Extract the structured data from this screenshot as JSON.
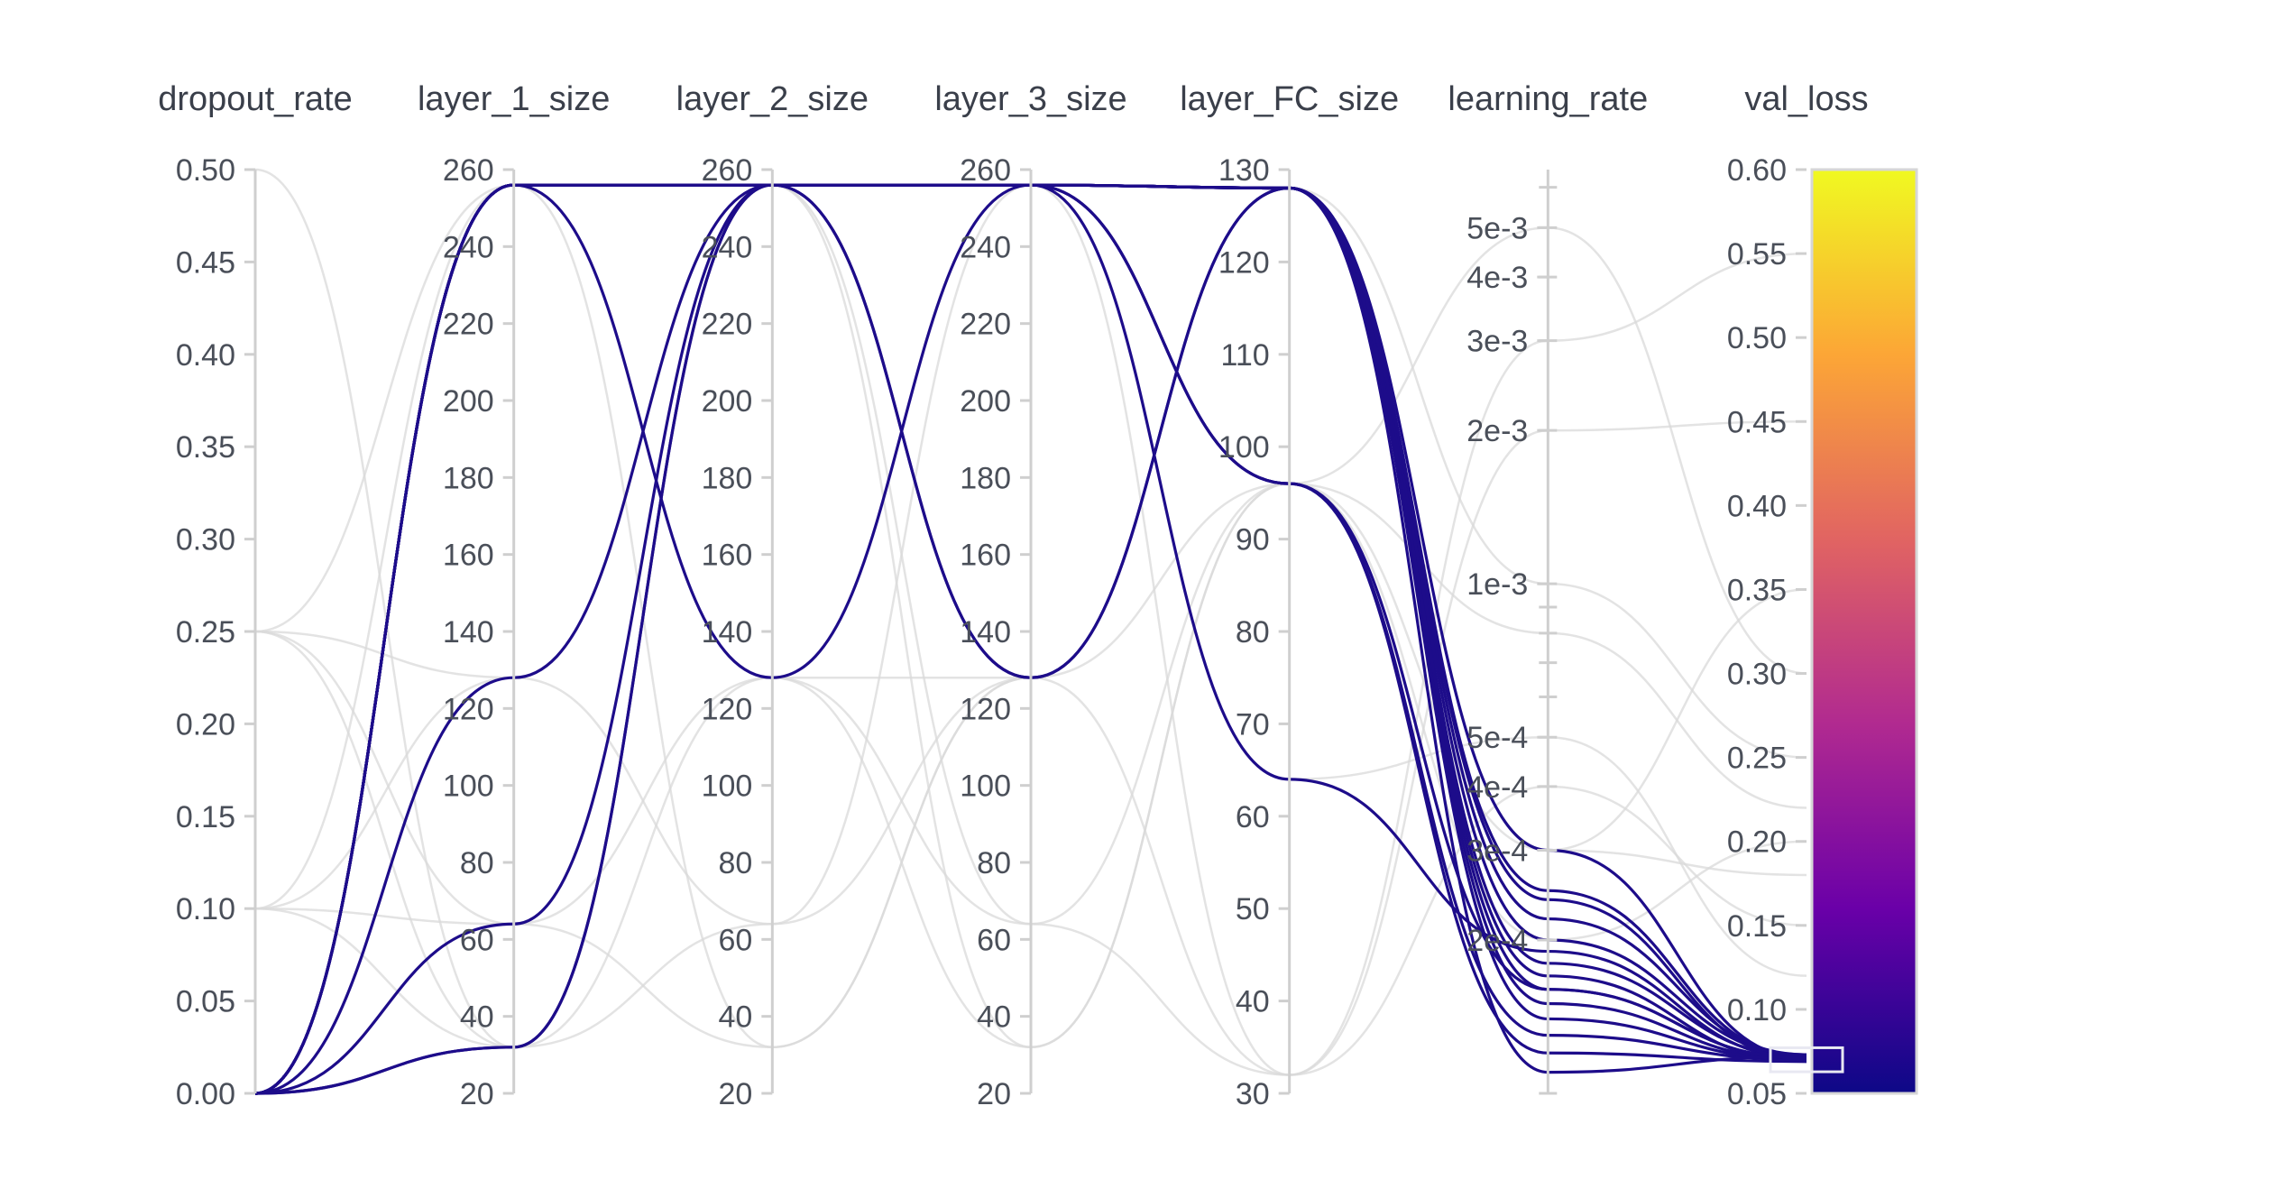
{
  "chart_data": {
    "type": "parallel_coordinates",
    "dimensions": [
      {
        "key": "dropout_rate",
        "label": "dropout_rate",
        "range": [
          0,
          0.5
        ],
        "scale": "linear",
        "ticks": [
          "0.00",
          "0.05",
          "0.10",
          "0.15",
          "0.20",
          "0.25",
          "0.30",
          "0.35",
          "0.40",
          "0.45",
          "0.50"
        ]
      },
      {
        "key": "layer_1_size",
        "label": "layer_1_size",
        "range": [
          20,
          260
        ],
        "scale": "linear",
        "ticks": [
          "20",
          "40",
          "60",
          "80",
          "100",
          "120",
          "140",
          "160",
          "180",
          "200",
          "220",
          "240",
          "260"
        ]
      },
      {
        "key": "layer_2_size",
        "label": "layer_2_size",
        "range": [
          20,
          260
        ],
        "scale": "linear",
        "ticks": [
          "20",
          "40",
          "60",
          "80",
          "100",
          "120",
          "140",
          "160",
          "180",
          "200",
          "220",
          "240",
          "260"
        ]
      },
      {
        "key": "layer_3_size",
        "label": "layer_3_size",
        "range": [
          20,
          260
        ],
        "scale": "linear",
        "ticks": [
          "20",
          "40",
          "60",
          "80",
          "100",
          "120",
          "140",
          "160",
          "180",
          "200",
          "220",
          "240",
          "260"
        ]
      },
      {
        "key": "layer_FC_size",
        "label": "layer_FC_size",
        "range": [
          30,
          130
        ],
        "scale": "linear",
        "ticks": [
          "30",
          "40",
          "50",
          "60",
          "70",
          "80",
          "90",
          "100",
          "110",
          "120",
          "130"
        ]
      },
      {
        "key": "learning_rate",
        "label": "learning_rate",
        "range": [
          0.0001,
          0.0065
        ],
        "scale": "log",
        "ticks": [
          "2e-4",
          "3e-4",
          "4e-4",
          "5e-4",
          "1e-3",
          "2e-3",
          "3e-3",
          "4e-3",
          "5e-3"
        ]
      },
      {
        "key": "val_loss",
        "label": "val_loss",
        "range": [
          0.05,
          0.6
        ],
        "scale": "linear",
        "ticks": [
          "0.05",
          "0.10",
          "0.15",
          "0.20",
          "0.25",
          "0.30",
          "0.35",
          "0.40",
          "0.45",
          "0.50",
          "0.55",
          "0.60"
        ]
      }
    ],
    "colorscale": {
      "name": "plasma",
      "stops": [
        "#0d0887",
        "#6a00a8",
        "#b12a90",
        "#e16462",
        "#fca636",
        "#f0f921"
      ],
      "range": [
        0.05,
        0.6
      ]
    },
    "highlight_range": {
      "dimension": "val_loss",
      "range": [
        0.065,
        0.075
      ]
    },
    "runs": [
      {
        "dropout_rate": 0.0,
        "layer_1_size": 256,
        "layer_2_size": 256,
        "layer_3_size": 256,
        "layer_FC_size": 128,
        "learning_rate": 0.00016,
        "val_loss": 0.071
      },
      {
        "dropout_rate": 0.0,
        "layer_1_size": 256,
        "layer_2_size": 128,
        "layer_3_size": 256,
        "layer_FC_size": 128,
        "learning_rate": 0.00015,
        "val_loss": 0.07
      },
      {
        "dropout_rate": 0.0,
        "layer_1_size": 256,
        "layer_2_size": 256,
        "layer_3_size": 128,
        "layer_FC_size": 128,
        "learning_rate": 0.00018,
        "val_loss": 0.072
      },
      {
        "dropout_rate": 0.0,
        "layer_1_size": 128,
        "layer_2_size": 256,
        "layer_3_size": 256,
        "layer_FC_size": 96,
        "learning_rate": 0.00012,
        "val_loss": 0.069
      },
      {
        "dropout_rate": 0.0,
        "layer_1_size": 64,
        "layer_2_size": 256,
        "layer_3_size": 256,
        "layer_FC_size": 128,
        "learning_rate": 0.00022,
        "val_loss": 0.073
      },
      {
        "dropout_rate": 0.0,
        "layer_1_size": 32,
        "layer_2_size": 256,
        "layer_3_size": 256,
        "layer_FC_size": 64,
        "learning_rate": 0.00019,
        "val_loss": 0.071
      },
      {
        "dropout_rate": 0.0,
        "layer_1_size": 256,
        "layer_2_size": 256,
        "layer_3_size": 256,
        "layer_FC_size": 96,
        "learning_rate": 0.00013,
        "val_loss": 0.07
      },
      {
        "dropout_rate": 0.0,
        "layer_1_size": 32,
        "layer_2_size": 256,
        "layer_3_size": 256,
        "layer_FC_size": 128,
        "learning_rate": 0.00025,
        "val_loss": 0.072
      },
      {
        "dropout_rate": 0.0,
        "layer_1_size": 256,
        "layer_2_size": 256,
        "layer_3_size": 256,
        "layer_FC_size": 128,
        "learning_rate": 0.0003,
        "val_loss": 0.071
      },
      {
        "dropout_rate": 0.0,
        "layer_1_size": 256,
        "layer_2_size": 256,
        "layer_3_size": 256,
        "layer_FC_size": 128,
        "learning_rate": 0.00014,
        "val_loss": 0.07
      },
      {
        "dropout_rate": 0.0,
        "layer_1_size": 256,
        "layer_2_size": 256,
        "layer_3_size": 128,
        "layer_FC_size": 128,
        "learning_rate": 0.0002,
        "val_loss": 0.073
      },
      {
        "dropout_rate": 0.0,
        "layer_1_size": 256,
        "layer_2_size": 256,
        "layer_3_size": 256,
        "layer_FC_size": 128,
        "learning_rate": 0.00017,
        "val_loss": 0.069
      },
      {
        "dropout_rate": 0.0,
        "layer_1_size": 256,
        "layer_2_size": 256,
        "layer_3_size": 256,
        "layer_FC_size": 128,
        "learning_rate": 0.00011,
        "val_loss": 0.072
      },
      {
        "dropout_rate": 0.0,
        "layer_1_size": 256,
        "layer_2_size": 256,
        "layer_3_size": 256,
        "layer_FC_size": 128,
        "learning_rate": 0.00024,
        "val_loss": 0.07
      },
      {
        "dropout_rate": 0.0,
        "layer_1_size": 256,
        "layer_2_size": 256,
        "layer_3_size": 256,
        "layer_FC_size": 96,
        "learning_rate": 0.00016,
        "val_loss": 0.071
      },
      {
        "dropout_rate": 0.1,
        "layer_1_size": 32,
        "layer_2_size": 128,
        "layer_3_size": 32,
        "layer_FC_size": 96,
        "learning_rate": 0.0003,
        "val_loss": 0.35
      },
      {
        "dropout_rate": 0.25,
        "layer_1_size": 128,
        "layer_2_size": 64,
        "layer_3_size": 128,
        "layer_FC_size": 32,
        "learning_rate": 0.003,
        "val_loss": 0.55
      },
      {
        "dropout_rate": 0.5,
        "layer_1_size": 32,
        "layer_2_size": 256,
        "layer_3_size": 64,
        "layer_FC_size": 96,
        "learning_rate": 0.0002,
        "val_loss": 0.2
      },
      {
        "dropout_rate": 0.1,
        "layer_1_size": 256,
        "layer_2_size": 32,
        "layer_3_size": 128,
        "layer_FC_size": 128,
        "learning_rate": 0.001,
        "val_loss": 0.25
      },
      {
        "dropout_rate": 0.25,
        "layer_1_size": 64,
        "layer_2_size": 128,
        "layer_3_size": 256,
        "layer_FC_size": 32,
        "learning_rate": 0.0004,
        "val_loss": 0.15
      },
      {
        "dropout_rate": 0.1,
        "layer_1_size": 128,
        "layer_2_size": 256,
        "layer_3_size": 32,
        "layer_FC_size": 96,
        "learning_rate": 0.005,
        "val_loss": 0.3
      },
      {
        "dropout_rate": 0.25,
        "layer_1_size": 32,
        "layer_2_size": 64,
        "layer_3_size": 256,
        "layer_FC_size": 64,
        "learning_rate": 0.0005,
        "val_loss": 0.12
      },
      {
        "dropout_rate": 0.0,
        "layer_1_size": 256,
        "layer_2_size": 128,
        "layer_3_size": 64,
        "layer_FC_size": 32,
        "learning_rate": 0.002,
        "val_loss": 0.45
      },
      {
        "dropout_rate": 0.1,
        "layer_1_size": 64,
        "layer_2_size": 32,
        "layer_3_size": 128,
        "layer_FC_size": 128,
        "learning_rate": 0.0003,
        "val_loss": 0.18
      },
      {
        "dropout_rate": 0.25,
        "layer_1_size": 256,
        "layer_2_size": 128,
        "layer_3_size": 128,
        "layer_FC_size": 96,
        "learning_rate": 0.0008,
        "val_loss": 0.22
      }
    ]
  }
}
